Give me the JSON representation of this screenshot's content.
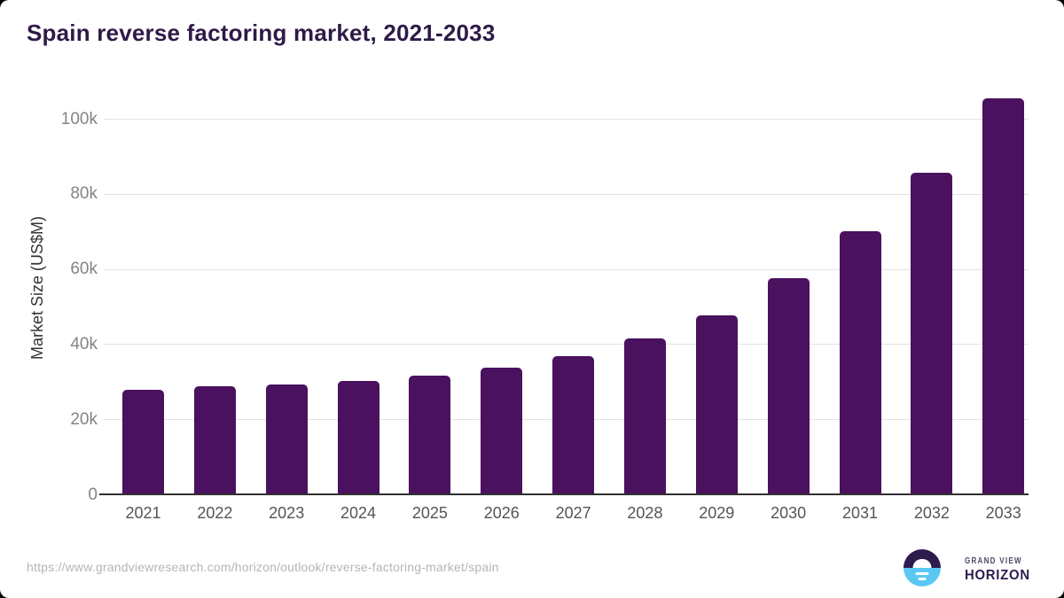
{
  "chart_data": {
    "type": "bar",
    "title": "Spain reverse factoring market, 2021-2033",
    "xlabel": "",
    "ylabel": "Market Size (US$M)",
    "categories": [
      "2021",
      "2022",
      "2023",
      "2024",
      "2025",
      "2026",
      "2027",
      "2028",
      "2029",
      "2030",
      "2031",
      "2032",
      "2033"
    ],
    "values": [
      28000,
      28800,
      29400,
      30400,
      31700,
      33800,
      36900,
      41600,
      47800,
      57600,
      70200,
      85700,
      105500
    ],
    "yticks": [
      0,
      20000,
      40000,
      60000,
      80000,
      100000
    ],
    "ytick_labels": [
      "0",
      "20k",
      "40k",
      "60k",
      "80k",
      "100k"
    ],
    "ylim": [
      0,
      110000
    ],
    "grid": "horizontal-only",
    "legend": "none",
    "bar_color": "#4a115e"
  },
  "footer": {
    "source_url": "https://www.grandviewresearch.com/horizon/outlook/reverse-factoring-market/spain",
    "brand_top": "GRAND VIEW",
    "brand_bottom": "HORIZON",
    "logo_colors": {
      "top_half": "#2d1b4e",
      "bottom_half": "#5ac8f2",
      "accent": "#ffffff"
    }
  }
}
